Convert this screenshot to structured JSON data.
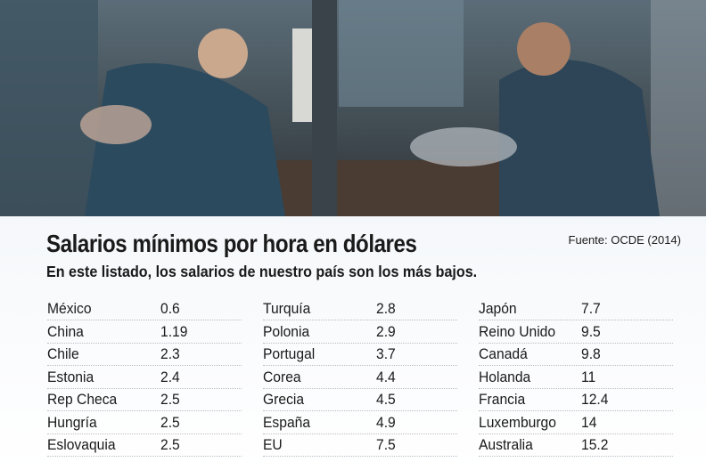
{
  "header": {
    "title": "Salarios mínimos por hora en dólares",
    "subtitle": "En este listado, los salarios de nuestro país son los más bajos.",
    "source": "Fuente: OCDE (2014)"
  },
  "table": {
    "columns": [
      {
        "rows": [
          [
            "México",
            0.6
          ],
          [
            "China",
            1.19
          ],
          [
            "Chile",
            2.3
          ],
          [
            "Estonia",
            2.4
          ],
          [
            "Rep Checa",
            2.5
          ],
          [
            "Hungría",
            2.5
          ],
          [
            "Eslovaquia",
            2.5
          ]
        ]
      },
      {
        "rows": [
          [
            "Turquía",
            2.8
          ],
          [
            "Polonia",
            2.9
          ],
          [
            "Portugal",
            3.7
          ],
          [
            "Corea",
            4.4
          ],
          [
            "Grecia",
            4.5
          ],
          [
            "España",
            4.9
          ],
          [
            "EU",
            7.5
          ]
        ]
      },
      {
        "rows": [
          [
            "Japón",
            7.7
          ],
          [
            "Reino Unido",
            9.5
          ],
          [
            "Canadá",
            9.8
          ],
          [
            "Holanda",
            11
          ],
          [
            "Francia",
            12.4
          ],
          [
            "Luxemburgo",
            14
          ],
          [
            "Australia",
            15.2
          ]
        ]
      }
    ]
  }
}
